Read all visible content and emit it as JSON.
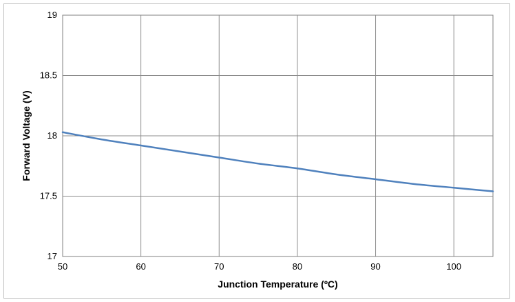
{
  "chart_data": {
    "type": "line",
    "title": "",
    "xlabel": "Junction Temperature (ºC)",
    "ylabel": "Forward Voltage (V)",
    "xlim": [
      50,
      105
    ],
    "ylim": [
      17,
      19
    ],
    "x_ticks": [
      50,
      60,
      70,
      80,
      90,
      100
    ],
    "y_ticks": [
      17,
      17.5,
      18,
      18.5,
      19
    ],
    "x_tick_labels": [
      "50",
      "60",
      "70",
      "80",
      "90",
      "100"
    ],
    "y_tick_labels": [
      "17",
      "17.5",
      "18",
      "18.5",
      "19"
    ],
    "grid": true,
    "legend": "none",
    "series": [
      {
        "color": "#4f81bd",
        "x": [
          50,
          55,
          60,
          65,
          70,
          75,
          80,
          85,
          90,
          95,
          100,
          105
        ],
        "y": [
          18.03,
          17.97,
          17.92,
          17.87,
          17.82,
          17.77,
          17.73,
          17.68,
          17.64,
          17.6,
          17.57,
          17.54
        ]
      }
    ]
  }
}
